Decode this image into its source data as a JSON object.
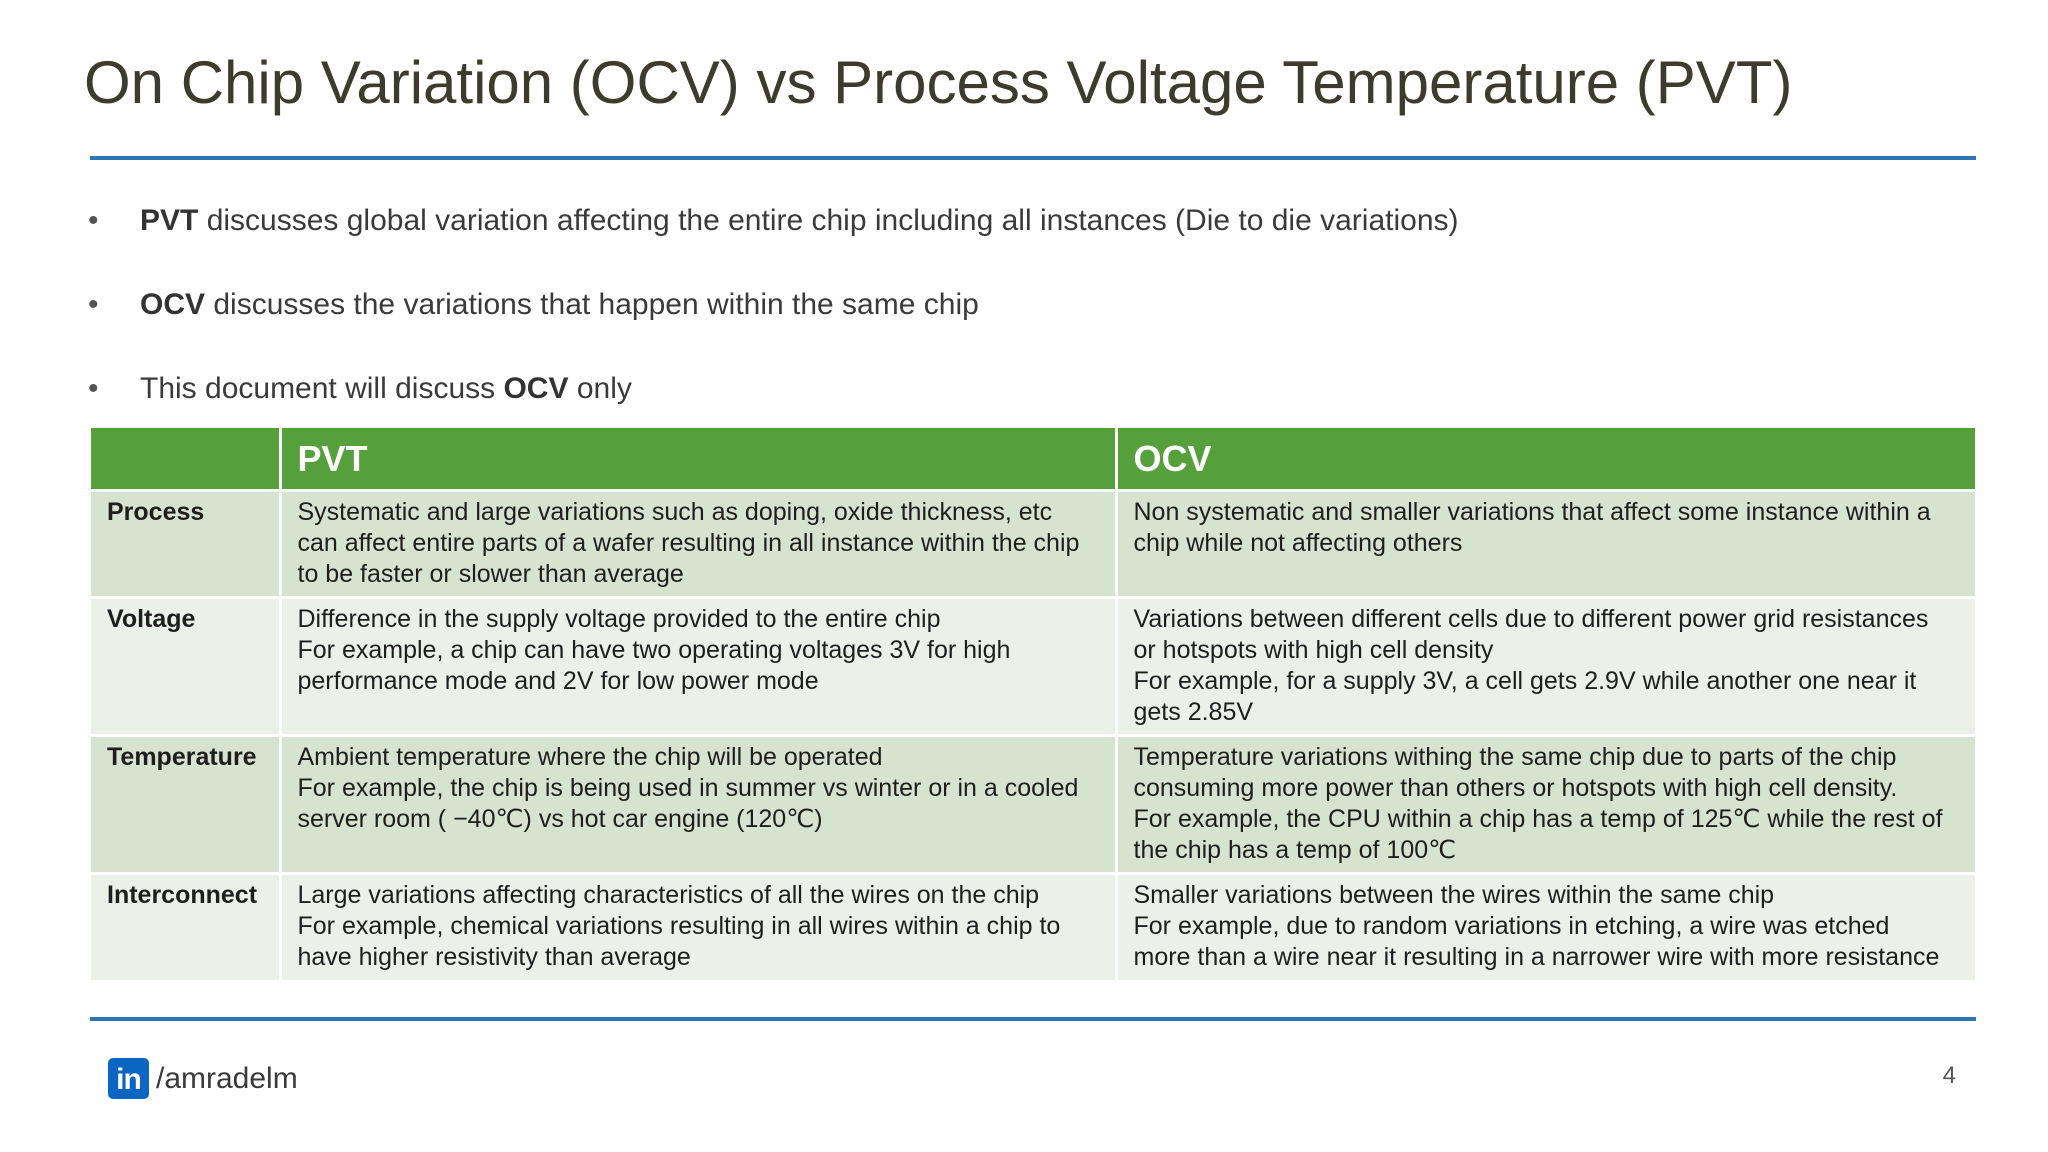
{
  "slide": {
    "title": "On Chip Variation (OCV) vs Process Voltage Temperature (PVT)",
    "page_number": "4"
  },
  "bullets": [
    {
      "bold": "PVT",
      "pre": "",
      "post": " discusses global variation affecting the entire chip including all instances (Die to die variations)"
    },
    {
      "bold": "OCV",
      "pre": "",
      "post": " discusses the variations that happen within the same chip"
    },
    {
      "bold": "OCV",
      "pre": "This document will discuss ",
      "post": " only"
    }
  ],
  "bullet_glyph": "•",
  "table": {
    "headers": [
      "",
      "PVT",
      "OCV"
    ],
    "rows": [
      {
        "label": "Process",
        "pvt": [
          "Systematic and large variations such as doping, oxide thickness, etc",
          "can affect entire parts of a wafer resulting in all instance within the chip",
          "to be faster or slower than average"
        ],
        "ocv": [
          "Non systematic and smaller variations that affect some instance within a",
          "chip while not affecting others"
        ]
      },
      {
        "label": "Voltage",
        "pvt": [
          "Difference in the supply voltage provided to the entire chip",
          "For example, a chip can have two operating voltages 3V for high",
          "performance mode and 2V for low power mode"
        ],
        "ocv": [
          "Variations between different cells due to different power grid resistances",
          "or hotspots with high cell density",
          "For example, for a supply 3V, a cell gets 2.9V while another one near it",
          "gets 2.85V"
        ]
      },
      {
        "label": "Temperature",
        "pvt": [
          "Ambient temperature where the chip will be operated",
          "For example, the chip is being used in summer vs winter or in a cooled",
          "server room ( −40℃) vs hot car engine (120℃)"
        ],
        "ocv": [
          "Temperature variations withing the same chip due to parts of the chip",
          "consuming more power than others or hotspots with high cell density.",
          "For example, the CPU within a chip has a temp of 125℃ while the rest of",
          "the chip has a temp of 100℃"
        ]
      },
      {
        "label": "Interconnect",
        "pvt": [
          "Large variations affecting characteristics of all the wires on the chip",
          "For example, chemical variations resulting in all wires within a chip to",
          "have higher resistivity than average"
        ],
        "ocv": [
          "Smaller variations between the wires within the same chip",
          "For example, due to random variations in etching, a wire was etched",
          "more than a wire near it resulting in a narrower wire with more resistance"
        ]
      }
    ]
  },
  "footer": {
    "logo_text": "in",
    "handle": "/amradelm"
  },
  "colors": {
    "title": "#3f3b2c",
    "rule": "#2e75b6",
    "header_green": "#56a03b",
    "row_dark": "#d5e3cf",
    "row_light": "#ebf1e8",
    "linkedin_blue": "#0a66c2"
  }
}
